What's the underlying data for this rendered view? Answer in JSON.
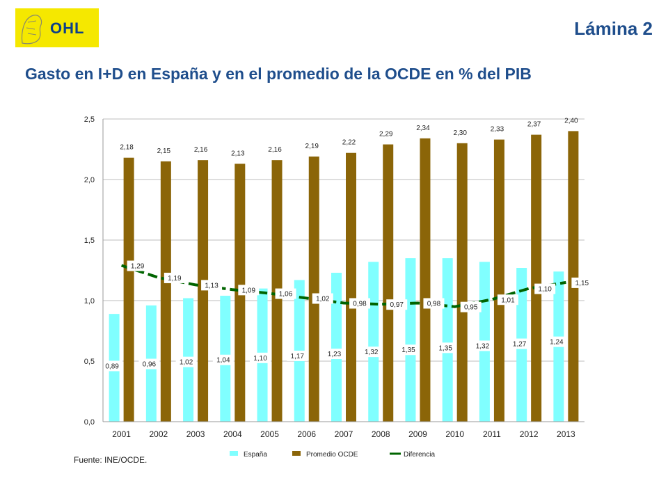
{
  "header": {
    "logo_text": "OHL",
    "slide_label": "Lámina 2"
  },
  "title": "Gasto en I+D en España y en el promedio de la OCDE en % del PIB",
  "source": "Fuente: INE/OCDE.",
  "colors": {
    "espana": "#80ffff",
    "ocde": "#8b6508",
    "diferencia": "#006400",
    "logo_bg": "#f5e800",
    "title": "#1f4e8c"
  },
  "chart_data": {
    "type": "bar",
    "categories": [
      "2001",
      "2002",
      "2003",
      "2004",
      "2005",
      "2006",
      "2007",
      "2008",
      "2009",
      "2010",
      "2011",
      "2012",
      "2013"
    ],
    "series": [
      {
        "name": "España",
        "type": "bar",
        "values": [
          0.89,
          0.96,
          1.02,
          1.04,
          1.1,
          1.17,
          1.23,
          1.32,
          1.35,
          1.35,
          1.32,
          1.27,
          1.24
        ],
        "labels": [
          "0,89",
          "0,96",
          "1,02",
          "1,04",
          "1,10",
          "1,17",
          "1,23",
          "1,32",
          "1,35",
          "1,35",
          "1,32",
          "1,27",
          "1,24"
        ]
      },
      {
        "name": "Promedio OCDE",
        "type": "bar",
        "values": [
          2.18,
          2.15,
          2.16,
          2.13,
          2.16,
          2.19,
          2.22,
          2.29,
          2.34,
          2.3,
          2.33,
          2.37,
          2.4
        ],
        "labels": [
          "2,18",
          "2,15",
          "2,16",
          "2,13",
          "2,16",
          "2,19",
          "2,22",
          "2,29",
          "2,34",
          "2,30",
          "2,33",
          "2,37",
          "2,40"
        ]
      },
      {
        "name": "Diferencia",
        "type": "line",
        "values": [
          1.29,
          1.19,
          1.13,
          1.09,
          1.06,
          1.02,
          0.98,
          0.97,
          0.98,
          0.95,
          1.01,
          1.1,
          1.15
        ],
        "labels": [
          "1,29",
          "1,19",
          "1,13",
          "1,09",
          "1,06",
          "1,02",
          "0,98",
          "0,97",
          "0,98",
          "0,95",
          "1,01",
          "1,10",
          "1,15"
        ]
      }
    ],
    "yticks": [
      "0,0",
      "0,5",
      "1,0",
      "1,5",
      "2,0",
      "2,5"
    ],
    "ylim": [
      0,
      2.5
    ],
    "grid": true,
    "legend_position": "bottom"
  }
}
